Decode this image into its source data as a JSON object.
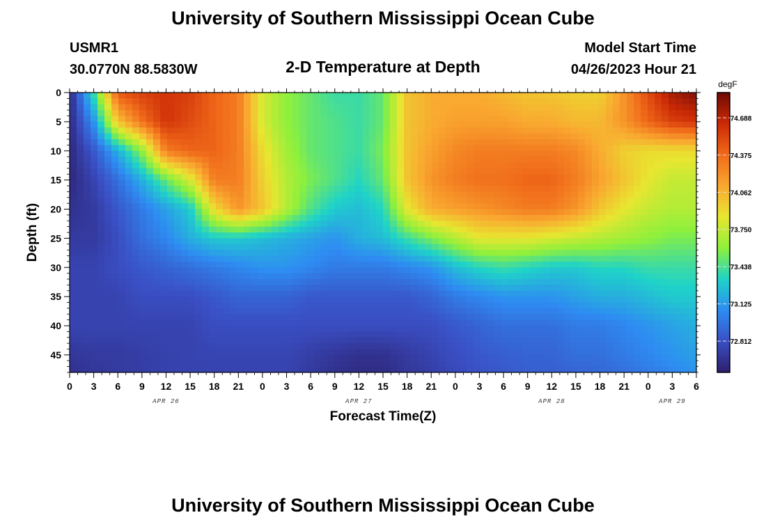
{
  "header": {
    "title": "University of Southern Mississippi Ocean Cube",
    "station": "USMR1",
    "coords": "30.0770N  88.5830W",
    "subtitle": "2-D Temperature at Depth",
    "model_label": "Model Start Time",
    "model_time": "04/26/2023 Hour 21",
    "footer_title": "University of Southern Mississippi Ocean Cube"
  },
  "chart_data": {
    "type": "heatmap",
    "xlabel": "Forecast Time(Z)",
    "ylabel": "Depth (ft)",
    "x_hours_range": [
      0,
      78
    ],
    "x_tick_labels": [
      "0",
      "3",
      "6",
      "9",
      "12",
      "15",
      "18",
      "21",
      "0",
      "3",
      "6",
      "9",
      "12",
      "15",
      "18",
      "21",
      "0",
      "3",
      "6",
      "9",
      "12",
      "15",
      "18",
      "21",
      "0",
      "3",
      "6"
    ],
    "date_labels": [
      {
        "text": "APR 26",
        "at_hour": 12
      },
      {
        "text": "APR 27",
        "at_hour": 36
      },
      {
        "text": "APR 28",
        "at_hour": 60
      },
      {
        "text": "APR 29",
        "at_hour": 75
      }
    ],
    "y_ticks": [
      0,
      5,
      10,
      15,
      20,
      25,
      30,
      35,
      40,
      45
    ],
    "y_range": [
      0,
      48
    ],
    "colorbar": {
      "unit": "degF",
      "range": [
        72.55,
        74.9
      ],
      "ticks": [
        "74.688",
        "74.375",
        "74.062",
        "73.750",
        "73.438",
        "73.125",
        "72.812"
      ],
      "colors": [
        "#2c1f6e",
        "#3a4fc4",
        "#2e8cf2",
        "#1fd3c8",
        "#8ef03c",
        "#e8e630",
        "#f9a830",
        "#f06a1a",
        "#cc2a06",
        "#6e0a05"
      ]
    },
    "field": {
      "hours": [
        0,
        3,
        6,
        9,
        12,
        15,
        18,
        21,
        24,
        27,
        30,
        33,
        36,
        39,
        42,
        45,
        48,
        51,
        54,
        57,
        60,
        63,
        66,
        69,
        72,
        75,
        78
      ],
      "depths_ft": [
        0,
        5,
        10,
        15,
        20,
        25,
        30,
        35,
        40,
        45,
        48
      ],
      "temperature_degF": [
        [
          72.6,
          73.4,
          74.45,
          74.55,
          74.6,
          74.55,
          74.4,
          74.3,
          73.8,
          73.6,
          73.5,
          73.4,
          73.4,
          73.5,
          74.0,
          74.1,
          74.1,
          74.1,
          74.05,
          74.0,
          74.0,
          73.95,
          73.95,
          74.2,
          74.5,
          74.75,
          74.85
        ],
        [
          72.6,
          73.1,
          74.0,
          74.35,
          74.6,
          74.5,
          74.4,
          74.3,
          73.8,
          73.6,
          73.5,
          73.45,
          73.4,
          73.5,
          74.0,
          74.1,
          74.15,
          74.15,
          74.15,
          74.1,
          74.1,
          74.05,
          74.05,
          74.2,
          74.4,
          74.55,
          74.6
        ],
        [
          72.6,
          72.85,
          73.2,
          73.6,
          74.3,
          74.4,
          74.4,
          74.3,
          73.9,
          73.65,
          73.5,
          73.45,
          73.4,
          73.55,
          74.0,
          74.15,
          74.25,
          74.3,
          74.3,
          74.3,
          74.3,
          74.25,
          74.1,
          73.95,
          73.9,
          73.9,
          73.9
        ],
        [
          72.6,
          72.75,
          72.95,
          73.2,
          73.5,
          73.8,
          74.3,
          74.3,
          73.95,
          73.7,
          73.55,
          73.45,
          73.35,
          73.5,
          74.0,
          74.2,
          74.3,
          74.35,
          74.35,
          74.4,
          74.4,
          74.3,
          74.15,
          74.0,
          73.85,
          73.75,
          73.75
        ],
        [
          72.65,
          72.7,
          72.85,
          73.0,
          73.15,
          73.3,
          73.9,
          74.2,
          74.0,
          73.7,
          73.45,
          73.3,
          73.25,
          73.35,
          73.85,
          74.1,
          74.15,
          74.2,
          74.25,
          74.3,
          74.3,
          74.2,
          74.0,
          73.85,
          73.75,
          73.7,
          73.7
        ],
        [
          72.7,
          72.7,
          72.8,
          72.95,
          73.05,
          73.2,
          73.3,
          73.3,
          73.25,
          73.2,
          73.15,
          73.1,
          73.2,
          73.25,
          73.4,
          73.55,
          73.7,
          73.85,
          73.85,
          73.85,
          73.8,
          73.75,
          73.7,
          73.65,
          73.6,
          73.55,
          73.55
        ],
        [
          72.75,
          72.75,
          72.8,
          72.85,
          72.9,
          72.95,
          73.0,
          73.05,
          73.1,
          73.1,
          73.05,
          73.0,
          73.0,
          73.0,
          73.05,
          73.1,
          73.25,
          73.35,
          73.4,
          73.35,
          73.3,
          73.3,
          73.35,
          73.35,
          73.4,
          73.4,
          73.4
        ],
        [
          72.75,
          72.75,
          72.75,
          72.8,
          72.8,
          72.8,
          72.85,
          72.9,
          72.9,
          72.9,
          72.85,
          72.85,
          72.85,
          72.85,
          72.85,
          72.9,
          73.0,
          73.05,
          73.1,
          73.1,
          73.1,
          73.15,
          73.2,
          73.2,
          73.25,
          73.3,
          73.3
        ],
        [
          72.75,
          72.75,
          72.75,
          72.75,
          72.75,
          72.75,
          72.8,
          72.8,
          72.8,
          72.8,
          72.8,
          72.8,
          72.8,
          72.8,
          72.8,
          72.8,
          72.85,
          72.9,
          72.95,
          72.95,
          72.95,
          73.0,
          73.0,
          73.05,
          73.1,
          73.15,
          73.2
        ],
        [
          72.68,
          72.7,
          72.7,
          72.72,
          72.74,
          72.75,
          72.76,
          72.76,
          72.76,
          72.76,
          72.72,
          72.68,
          72.65,
          72.65,
          72.7,
          72.75,
          72.8,
          72.85,
          72.88,
          72.9,
          72.9,
          72.95,
          72.95,
          73.0,
          73.05,
          73.1,
          73.15
        ],
        [
          72.65,
          72.68,
          72.7,
          72.72,
          72.74,
          72.75,
          72.75,
          72.75,
          72.75,
          72.75,
          72.7,
          72.65,
          72.62,
          72.62,
          72.68,
          72.72,
          72.78,
          72.82,
          72.85,
          72.88,
          72.88,
          72.9,
          72.92,
          72.95,
          73.0,
          73.05,
          73.1
        ]
      ]
    }
  }
}
